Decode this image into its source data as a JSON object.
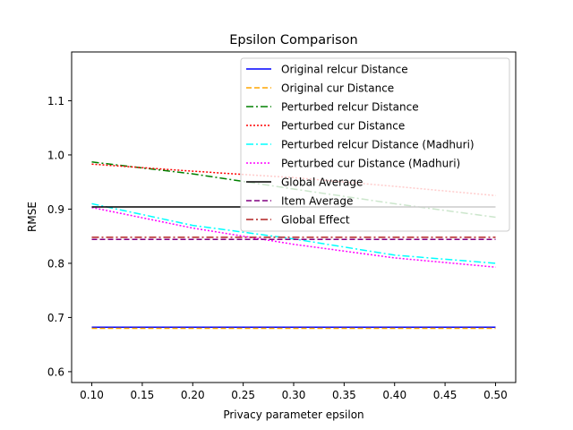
{
  "chart_data": {
    "type": "line",
    "title": "Epsilon Comparison",
    "xlabel": "Privacy parameter epsilon",
    "ylabel": "RMSE",
    "xlim": [
      0.08,
      0.52
    ],
    "ylim": [
      0.58,
      1.19
    ],
    "xticks": [
      0.1,
      0.15,
      0.2,
      0.25,
      0.3,
      0.35,
      0.4,
      0.45,
      0.5
    ],
    "yticks": [
      0.6,
      0.7,
      0.8,
      0.9,
      1.0,
      1.1
    ],
    "xtick_labels": [
      "0.10",
      "0.15",
      "0.20",
      "0.25",
      "0.30",
      "0.35",
      "0.40",
      "0.45",
      "0.50"
    ],
    "ytick_labels": [
      "0.6",
      "0.7",
      "0.8",
      "0.9",
      "1.0",
      "1.1"
    ],
    "grid": false,
    "legend_position": "upper-right",
    "x": [
      0.1,
      0.2,
      0.3,
      0.4,
      0.5
    ],
    "series": [
      {
        "name": "Original relcur Distance",
        "color": "#0000ff",
        "dash": "solid",
        "values": [
          0.682,
          0.682,
          0.682,
          0.682,
          0.682
        ]
      },
      {
        "name": "Original cur Distance",
        "color": "#ffa500",
        "dash": "dashed",
        "values": [
          0.68,
          0.68,
          0.68,
          0.68,
          0.68
        ]
      },
      {
        "name": "Perturbed relcur Distance",
        "color": "#008000",
        "dash": "dashdot",
        "values": [
          0.987,
          0.965,
          0.937,
          0.91,
          0.885
        ]
      },
      {
        "name": "Perturbed cur Distance",
        "color": "#ff0000",
        "dash": "dotted",
        "values": [
          0.983,
          0.97,
          0.958,
          0.942,
          0.925
        ]
      },
      {
        "name": "Perturbed relcur Distance (Madhuri)",
        "color": "#00ffff",
        "dash": "dashdot",
        "values": [
          0.91,
          0.87,
          0.845,
          0.815,
          0.8
        ]
      },
      {
        "name": "Perturbed cur Distance (Madhuri)",
        "color": "#ff00ff",
        "dash": "dotted",
        "values": [
          0.903,
          0.865,
          0.835,
          0.81,
          0.793
        ]
      },
      {
        "name": "Global Average",
        "color": "#000000",
        "dash": "solid",
        "values": [
          0.904,
          0.904,
          0.904,
          0.904,
          0.904
        ]
      },
      {
        "name": "Item Average",
        "color": "#800080",
        "dash": "dashed",
        "values": [
          0.844,
          0.844,
          0.844,
          0.844,
          0.844
        ]
      },
      {
        "name": "Global Effect",
        "color": "#b22222",
        "dash": "dashdot",
        "values": [
          0.848,
          0.848,
          0.848,
          0.848,
          0.848
        ]
      }
    ]
  }
}
